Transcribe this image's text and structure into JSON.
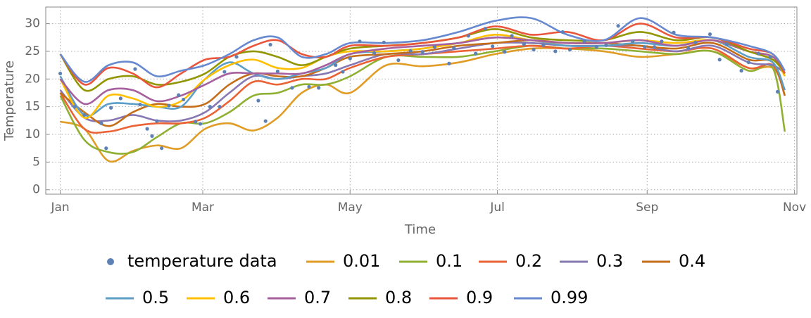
{
  "chart_data": {
    "type": "quantile-lines",
    "x_label": "Time",
    "y_label": "Temperature",
    "xlim": [
      -6,
      305
    ],
    "ylim": [
      -0.8,
      33
    ],
    "xticks": [
      {
        "value": 0,
        "label": "Jan"
      },
      {
        "value": 59,
        "label": "Mar"
      },
      {
        "value": 120,
        "label": "May"
      },
      {
        "value": 181,
        "label": "Jul"
      },
      {
        "value": 243,
        "label": "Sep"
      },
      {
        "value": 304,
        "label": "Nov"
      }
    ],
    "yticks": [
      0,
      5,
      10,
      15,
      20,
      25,
      30
    ],
    "grid": true,
    "series": [
      {
        "name": "temperature data",
        "kind": "scatter",
        "color": "#5e81b5",
        "x": [
          0,
          6,
          10,
          17,
          19,
          21,
          25,
          31,
          33,
          36,
          38,
          40,
          42,
          45,
          49,
          51,
          56,
          58,
          62,
          66,
          68,
          73,
          82,
          85,
          87,
          90,
          96,
          103,
          107,
          114,
          117,
          120,
          124,
          130,
          134,
          140,
          145,
          150,
          155,
          161,
          163,
          169,
          172,
          176,
          179,
          184,
          187,
          192,
          196,
          200,
          205,
          208,
          211,
          217,
          222,
          226,
          231,
          237,
          242,
          246,
          249,
          254,
          260,
          263,
          269,
          273,
          276,
          282,
          285,
          289,
          294,
          297
        ],
        "values": [
          21,
          15,
          13.5,
          12,
          7.5,
          14.8,
          16.5,
          21.8,
          15.4,
          11,
          9.7,
          12.4,
          7.5,
          15.2,
          17.1,
          16.3,
          12.3,
          11.9,
          15,
          15,
          21.3,
          24,
          16.1,
          12.4,
          26.2,
          21.4,
          18.4,
          18.6,
          18.4,
          22.5,
          21.3,
          23.7,
          26.8,
          24.7,
          26.6,
          23.4,
          25.1,
          24.9,
          25.8,
          22.8,
          25.6,
          27.8,
          24.6,
          29.1,
          25.9,
          24.9,
          27.8,
          26.3,
          25.3,
          26.1,
          25,
          28.5,
          25.3,
          26.8,
          25.8,
          26.1,
          29.6,
          26.8,
          25.8,
          25.8,
          26.8,
          28.4,
          25.6,
          26.6,
          28.1,
          23.5,
          26.3,
          21.5,
          23,
          24.6,
          24,
          17.7
        ]
      },
      {
        "name": "0.01",
        "kind": "line",
        "color": "#e09c24",
        "x": [
          0,
          10,
          20,
          30,
          40,
          50,
          60,
          70,
          80,
          90,
          100,
          110,
          120,
          135,
          150,
          165,
          180,
          195,
          210,
          225,
          240,
          255,
          270,
          285,
          295,
          300
        ],
        "values": [
          12.3,
          11,
          5.2,
          7,
          8,
          7.5,
          11,
          12,
          10.7,
          13,
          17.5,
          19,
          17.5,
          22.5,
          22.3,
          23,
          24.5,
          25.5,
          25.5,
          25,
          24,
          24.5,
          25,
          22,
          22,
          18
        ]
      },
      {
        "name": "0.1",
        "kind": "line",
        "color": "#8fb032",
        "x": [
          0,
          10,
          20,
          30,
          40,
          50,
          60,
          70,
          80,
          90,
          100,
          110,
          120,
          135,
          150,
          165,
          180,
          195,
          210,
          225,
          240,
          255,
          270,
          285,
          295,
          300
        ],
        "values": [
          17,
          9,
          6.8,
          6.8,
          9.5,
          12,
          12,
          14,
          17,
          17.5,
          19,
          19,
          20.5,
          24,
          24,
          24,
          25,
          26,
          25.5,
          25.5,
          25,
          24.5,
          25,
          21.5,
          22,
          10.5
        ]
      },
      {
        "name": "0.2",
        "kind": "line",
        "color": "#eb6235",
        "x": [
          0,
          10,
          20,
          30,
          40,
          50,
          60,
          70,
          80,
          90,
          100,
          110,
          120,
          135,
          150,
          165,
          180,
          195,
          210,
          225,
          240,
          255,
          270,
          285,
          295,
          300
        ],
        "values": [
          17.5,
          11,
          10.5,
          11.5,
          12,
          12,
          13,
          16,
          19.5,
          19,
          20,
          20,
          22,
          24,
          24.5,
          25,
          25.5,
          26,
          25.5,
          26,
          25.5,
          25,
          25.5,
          22,
          22.5,
          17
        ]
      },
      {
        "name": "0.3",
        "kind": "line",
        "color": "#8778b3",
        "x": [
          0,
          10,
          20,
          30,
          40,
          50,
          60,
          70,
          80,
          90,
          100,
          110,
          120,
          135,
          150,
          165,
          180,
          195,
          210,
          225,
          240,
          255,
          270,
          285,
          295,
          300
        ],
        "values": [
          18,
          13,
          12.5,
          13.5,
          12.5,
          12.5,
          14,
          17.5,
          20.5,
          20,
          20.5,
          21,
          22.5,
          24.5,
          24.5,
          25.5,
          26.5,
          26.5,
          26,
          26,
          26,
          25,
          26,
          23,
          22.5,
          21
        ]
      },
      {
        "name": "0.4",
        "kind": "line",
        "color": "#c56e1a",
        "x": [
          0,
          10,
          20,
          30,
          40,
          50,
          60,
          70,
          80,
          90,
          100,
          110,
          120,
          135,
          150,
          165,
          180,
          195,
          210,
          225,
          240,
          255,
          270,
          285,
          295,
          300
        ],
        "values": [
          17.5,
          14,
          11.5,
          14,
          15.5,
          15,
          15.5,
          19,
          21,
          20.5,
          20.5,
          22,
          24,
          24.5,
          25,
          26,
          26.5,
          27,
          26.5,
          26.5,
          26,
          25.5,
          26.5,
          23.5,
          23,
          17
        ]
      },
      {
        "name": "0.5",
        "kind": "line",
        "color": "#5d9ec7",
        "x": [
          0,
          10,
          20,
          30,
          40,
          50,
          60,
          70,
          80,
          90,
          100,
          110,
          120,
          135,
          150,
          165,
          180,
          195,
          210,
          225,
          240,
          255,
          270,
          285,
          295,
          300
        ],
        "values": [
          20.5,
          13.5,
          15.5,
          15.5,
          15,
          15,
          20,
          23,
          21,
          20,
          21,
          22,
          24.5,
          25,
          25.5,
          26.5,
          27.5,
          27,
          26,
          26,
          26.5,
          26,
          27,
          24,
          23,
          18
        ]
      },
      {
        "name": "0.6",
        "kind": "line",
        "color": "#ffbf00",
        "x": [
          0,
          10,
          20,
          30,
          40,
          50,
          60,
          70,
          80,
          90,
          100,
          110,
          120,
          135,
          150,
          165,
          180,
          195,
          210,
          225,
          240,
          255,
          270,
          285,
          295,
          300
        ],
        "values": [
          20,
          13,
          17,
          16.5,
          15,
          16,
          20,
          22.5,
          23.5,
          22,
          22,
          24,
          25,
          25,
          25.5,
          26.5,
          28,
          27,
          26.5,
          26.5,
          27,
          26.5,
          27,
          25,
          24,
          20.5
        ]
      },
      {
        "name": "0.7",
        "kind": "line",
        "color": "#a5609d",
        "x": [
          0,
          10,
          20,
          30,
          40,
          50,
          60,
          70,
          80,
          90,
          100,
          110,
          120,
          135,
          150,
          165,
          180,
          195,
          210,
          225,
          240,
          255,
          270,
          285,
          295,
          300
        ],
        "values": [
          20,
          15.5,
          18,
          18,
          16,
          17,
          19,
          21,
          21,
          21,
          21,
          22.5,
          24.5,
          25.5,
          26,
          26.5,
          27.5,
          27,
          26.5,
          26.5,
          27,
          26,
          27,
          25,
          24,
          21
        ]
      },
      {
        "name": "0.8",
        "kind": "line",
        "color": "#929600",
        "x": [
          0,
          10,
          20,
          30,
          40,
          50,
          60,
          70,
          80,
          90,
          100,
          110,
          120,
          135,
          150,
          165,
          180,
          195,
          210,
          225,
          240,
          255,
          270,
          285,
          295,
          300
        ],
        "values": [
          24.5,
          18,
          20,
          20.5,
          19,
          19.5,
          21,
          24,
          25,
          24,
          22.5,
          24,
          25.5,
          26,
          26.5,
          27.5,
          29,
          27.5,
          27,
          27,
          28.5,
          27,
          27.5,
          25,
          23.5,
          21
        ]
      },
      {
        "name": "0.9",
        "kind": "line",
        "color": "#e9563c",
        "x": [
          0,
          10,
          20,
          30,
          40,
          50,
          60,
          70,
          80,
          90,
          100,
          110,
          120,
          135,
          150,
          165,
          180,
          195,
          210,
          225,
          240,
          255,
          270,
          285,
          295,
          300
        ],
        "values": [
          24.5,
          19,
          22,
          21,
          18.5,
          21,
          23.5,
          24,
          26,
          27,
          24.5,
          24,
          26,
          26,
          26.5,
          27.5,
          29.5,
          28,
          28.5,
          27,
          30,
          27.5,
          27.5,
          25.5,
          24.5,
          21
        ]
      },
      {
        "name": "0.99",
        "kind": "line",
        "color": "#6789d0",
        "x": [
          0,
          10,
          20,
          30,
          40,
          50,
          60,
          70,
          80,
          90,
          100,
          110,
          120,
          135,
          150,
          165,
          180,
          195,
          210,
          225,
          240,
          255,
          270,
          285,
          295,
          300
        ],
        "values": [
          24.5,
          19.5,
          22.5,
          23,
          20.5,
          21.5,
          22.5,
          24.5,
          27,
          27.5,
          24,
          24.5,
          26.5,
          26.5,
          27,
          28.5,
          30.5,
          31,
          28,
          27,
          31,
          28,
          27.5,
          26,
          24.5,
          21.5
        ]
      }
    ]
  }
}
